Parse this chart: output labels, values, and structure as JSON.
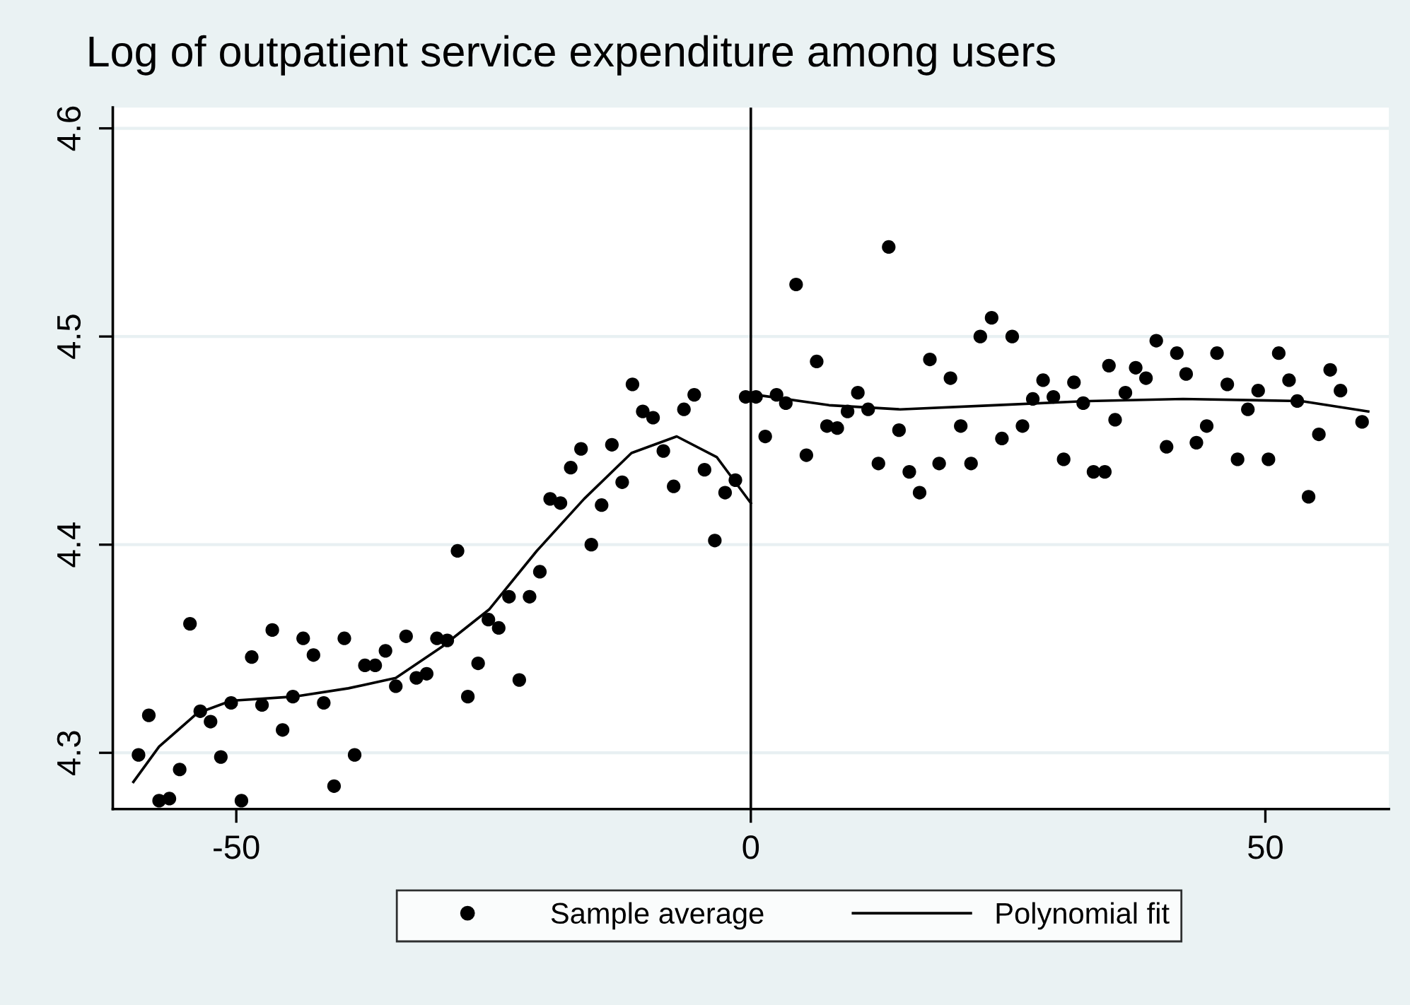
{
  "chart_data": {
    "type": "scatter",
    "title": "Log of outpatient service expenditure among users",
    "xlim": [
      -62,
      62
    ],
    "xticks": [
      -50,
      0,
      50
    ],
    "ylim": [
      4.273,
      4.61
    ],
    "yticks": [
      4.3,
      4.4,
      4.5,
      4.6
    ],
    "grid": "y",
    "legend": "bottom",
    "marker": "circle",
    "ref_lines": [
      {
        "axis": "x",
        "value": 0,
        "color": "#000000"
      }
    ],
    "series": [
      {
        "name": "Sample average",
        "color": "#000000",
        "x": [
          -59.5,
          -58.5,
          -57.5,
          -56.5,
          -55.5,
          -54.5,
          -53.5,
          -52.5,
          -51.5,
          -50.5,
          -49.5,
          -48.5,
          -47.5,
          -46.5,
          -45.5,
          -44.5,
          -43.5,
          -42.5,
          -41.5,
          -40.5,
          -39.5,
          -38.5,
          -37.5,
          -36.5,
          -35.5,
          -34.5,
          -33.5,
          -32.5,
          -31.5,
          -30.5,
          -29.5,
          -28.5,
          -27.5,
          -26.5,
          -25.5,
          -24.5,
          -23.5,
          -22.5,
          -21.5,
          -20.5,
          -19.5,
          -18.5,
          -17.5,
          -16.5,
          -15.5,
          -14.5,
          -13.5,
          -12.5,
          -11.5,
          -10.5,
          -9.5,
          -8.5,
          -7.5,
          -6.5,
          -5.5,
          -4.5,
          -3.5,
          -2.5,
          -1.5,
          -0.5,
          0.5,
          1.4,
          2.5,
          3.4,
          4.4,
          5.4,
          6.4,
          7.4,
          8.4,
          9.4,
          10.4,
          11.4,
          12.4,
          13.4,
          14.4,
          15.4,
          16.4,
          17.4,
          18.3,
          19.4,
          20.4,
          21.4,
          22.3,
          23.4,
          24.4,
          25.4,
          26.4,
          27.4,
          28.4,
          29.4,
          30.4,
          31.4,
          32.3,
          33.3,
          34.4,
          34.8,
          35.4,
          36.4,
          37.4,
          38.4,
          39.4,
          40.4,
          41.4,
          42.3,
          43.3,
          44.3,
          45.3,
          46.3,
          47.3,
          48.3,
          49.3,
          50.3,
          51.3,
          52.3,
          53.1,
          54.2,
          55.2,
          56.3,
          57.3,
          59.4
        ],
        "values": [
          4.299,
          4.318,
          4.277,
          4.278,
          4.292,
          4.362,
          4.32,
          4.315,
          4.298,
          4.324,
          4.277,
          4.346,
          4.323,
          4.359,
          4.311,
          4.327,
          4.355,
          4.347,
          4.324,
          4.284,
          4.355,
          4.299,
          4.342,
          4.342,
          4.349,
          4.332,
          4.356,
          4.336,
          4.338,
          4.355,
          4.354,
          4.397,
          4.327,
          4.343,
          4.364,
          4.36,
          4.375,
          4.335,
          4.375,
          4.387,
          4.422,
          4.42,
          4.437,
          4.446,
          4.4,
          4.419,
          4.448,
          4.43,
          4.477,
          4.464,
          4.461,
          4.445,
          4.428,
          4.465,
          4.472,
          4.436,
          4.402,
          4.425,
          4.431,
          4.471,
          4.471,
          4.452,
          4.472,
          4.468,
          4.525,
          4.443,
          4.488,
          4.457,
          4.456,
          4.464,
          4.473,
          4.465,
          4.439,
          4.543,
          4.455,
          4.435,
          4.425,
          4.489,
          4.439,
          4.48,
          4.457,
          4.439,
          4.5,
          4.509,
          4.451,
          4.5,
          4.457,
          4.47,
          4.479,
          4.471,
          4.441,
          4.478,
          4.468,
          4.435,
          4.435,
          4.486,
          4.46,
          4.473,
          4.485,
          4.48,
          4.498,
          4.447,
          4.492,
          4.482,
          4.449,
          4.457,
          4.492,
          4.477,
          4.441,
          4.465,
          4.474,
          4.441,
          4.492,
          4.479,
          4.469,
          4.423,
          4.453,
          4.484,
          4.474,
          4.459
        ]
      },
      {
        "name": "Polynomial fit",
        "type": "line",
        "color": "#000000",
        "marker": "none",
        "line_style": "solid",
        "x": [
          -60,
          -57.5,
          -53.8,
          -50.5,
          -44.4,
          -39.1,
          -34.5,
          -30,
          -25.4,
          -20.8,
          -16.2,
          -11.6,
          -7.2,
          -3.3,
          0
        ],
        "values": [
          4.286,
          4.303,
          4.319,
          4.325,
          4.327,
          4.331,
          4.336,
          4.351,
          4.369,
          4.397,
          4.422,
          4.444,
          4.452,
          4.442,
          4.42
        ]
      },
      {
        "type": "line",
        "color": "#000000",
        "marker": "none",
        "line_style": "solid",
        "x": [
          0,
          0.5,
          7.6,
          14.5,
          23.7,
          32.8,
          42,
          53.5,
          60
        ],
        "values": [
          4.473,
          4.472,
          4.467,
          4.465,
          4.467,
          4.469,
          4.47,
          4.469,
          4.464
        ]
      }
    ]
  }
}
